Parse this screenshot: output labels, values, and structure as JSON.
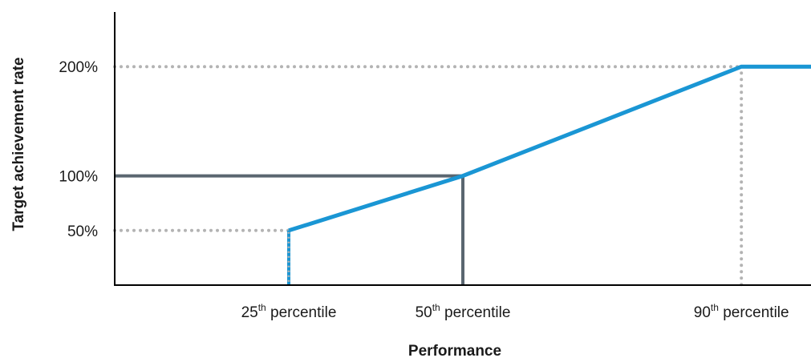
{
  "chart_data": {
    "type": "line",
    "title": "",
    "xlabel": "Performance",
    "ylabel": "Target achievement rate",
    "x_ticks": [
      {
        "value": 25,
        "num": "25",
        "sup": "th",
        "rest": " percentile"
      },
      {
        "value": 50,
        "num": "50",
        "sup": "th",
        "rest": " percentile"
      },
      {
        "value": 90,
        "num": "90",
        "sup": "th",
        "rest": " percentile"
      }
    ],
    "y_ticks": [
      {
        "value": 50,
        "label": "50%"
      },
      {
        "value": 100,
        "label": "100%"
      },
      {
        "value": 200,
        "label": "200%"
      }
    ],
    "xlim": [
      0,
      100
    ],
    "ylim": [
      0,
      250
    ],
    "series": [
      {
        "x": [
          25,
          50,
          90,
          100
        ],
        "y": [
          50,
          100,
          200,
          200
        ],
        "color": "#1a96d4"
      }
    ],
    "reference_lines": {
      "dotted_color": "#b3b3b3",
      "solid_color": "#5a6670"
    },
    "grid": false,
    "legend": "none"
  }
}
